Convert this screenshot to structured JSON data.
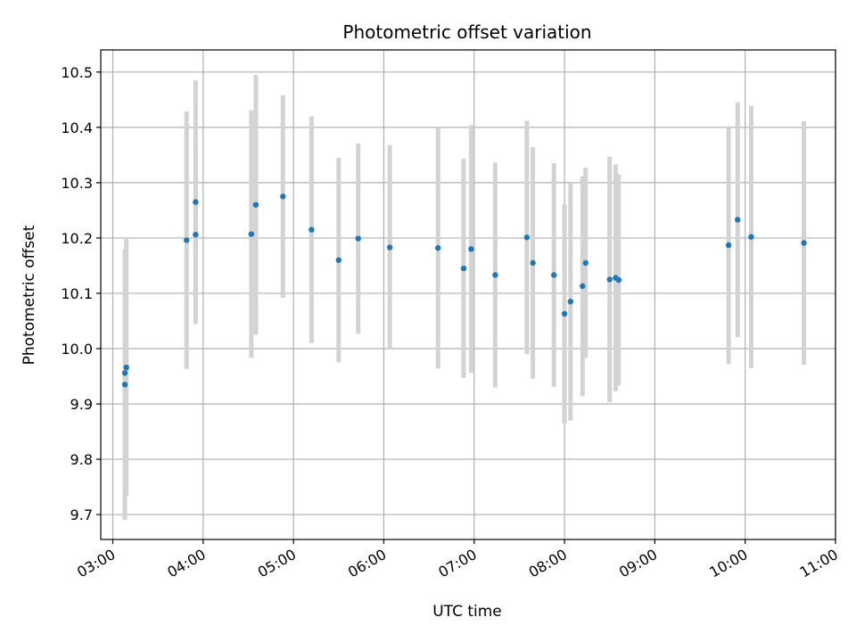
{
  "chart_data": {
    "type": "scatter",
    "title": "Photometric offset variation",
    "xlabel": "UTC time",
    "ylabel": "Photometric offset",
    "x_unit": "UTC hour",
    "xlim": [
      "02:52",
      "11:00"
    ],
    "ylim": [
      9.655,
      10.54
    ],
    "x_ticks": [
      "03:00",
      "04:00",
      "05:00",
      "06:00",
      "07:00",
      "08:00",
      "09:00",
      "10:00",
      "11:00"
    ],
    "y_ticks": [
      "9.7",
      "9.8",
      "9.9",
      "10.0",
      "10.1",
      "10.2",
      "10.3",
      "10.4",
      "10.5"
    ],
    "grid": true,
    "colors": {
      "points": "#1f77b4",
      "errorbars": "#d3d3d3",
      "grid": "#b0b0b0"
    },
    "points": [
      {
        "time": "03:08",
        "y": 9.935,
        "err": 0.245
      },
      {
        "time": "03:08",
        "y": 9.956,
        "err": 0.22
      },
      {
        "time": "03:09",
        "y": 9.966,
        "err": 0.232
      },
      {
        "time": "03:49",
        "y": 10.196,
        "err": 0.233
      },
      {
        "time": "03:55",
        "y": 10.206,
        "err": 0.158
      },
      {
        "time": "03:55",
        "y": 10.265,
        "err": 0.22
      },
      {
        "time": "04:32",
        "y": 10.207,
        "err": 0.224
      },
      {
        "time": "04:35",
        "y": 10.26,
        "err": 0.235
      },
      {
        "time": "04:53",
        "y": 10.275,
        "err": 0.183
      },
      {
        "time": "05:12",
        "y": 10.215,
        "err": 0.205
      },
      {
        "time": "05:30",
        "y": 10.16,
        "err": 0.185
      },
      {
        "time": "05:43",
        "y": 10.199,
        "err": 0.172
      },
      {
        "time": "06:04",
        "y": 10.183,
        "err": 0.185
      },
      {
        "time": "06:36",
        "y": 10.182,
        "err": 0.218
      },
      {
        "time": "06:53",
        "y": 10.145,
        "err": 0.198
      },
      {
        "time": "06:58",
        "y": 10.18,
        "err": 0.224
      },
      {
        "time": "07:14",
        "y": 10.133,
        "err": 0.203
      },
      {
        "time": "07:35",
        "y": 10.201,
        "err": 0.211
      },
      {
        "time": "07:39",
        "y": 10.155,
        "err": 0.209
      },
      {
        "time": "07:53",
        "y": 10.133,
        "err": 0.202
      },
      {
        "time": "08:00",
        "y": 10.063,
        "err": 0.198
      },
      {
        "time": "08:04",
        "y": 10.085,
        "err": 0.215
      },
      {
        "time": "08:12",
        "y": 10.113,
        "err": 0.199
      },
      {
        "time": "08:14",
        "y": 10.155,
        "err": 0.172
      },
      {
        "time": "08:30",
        "y": 10.125,
        "err": 0.222
      },
      {
        "time": "08:34",
        "y": 10.128,
        "err": 0.205
      },
      {
        "time": "08:36",
        "y": 10.124,
        "err": 0.191
      },
      {
        "time": "09:49",
        "y": 10.187,
        "err": 0.215
      },
      {
        "time": "09:55",
        "y": 10.233,
        "err": 0.212
      },
      {
        "time": "10:04",
        "y": 10.202,
        "err": 0.237
      },
      {
        "time": "10:39",
        "y": 10.191,
        "err": 0.22
      }
    ]
  }
}
